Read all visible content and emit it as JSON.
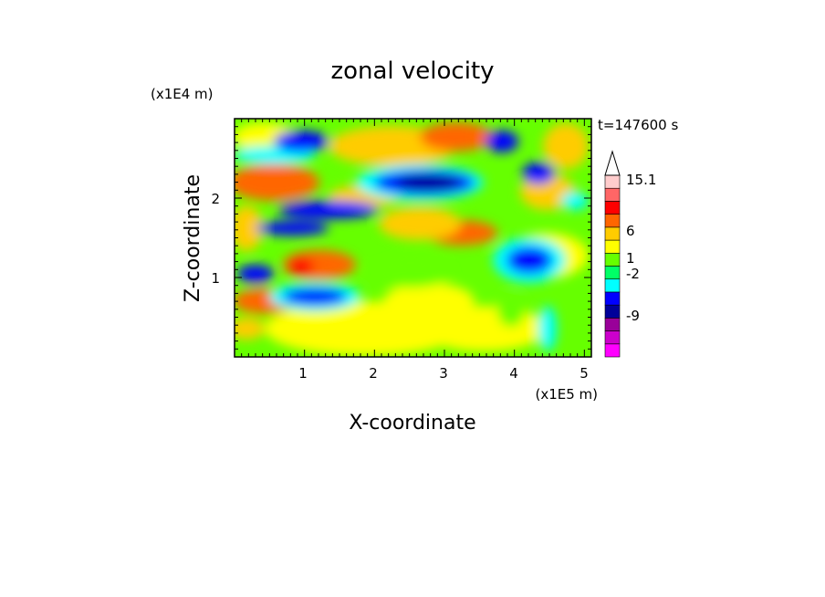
{
  "chart_data": {
    "type": "heatmap",
    "title": "zonal velocity",
    "xlabel": "X-coordinate",
    "ylabel": "Z-coordinate",
    "x_unit": "(x1E5 m)",
    "y_unit": "(x1E4 m)",
    "time_label": "t=147600 s",
    "xlim": [
      0.0,
      5.1
    ],
    "ylim": [
      0.0,
      3.0
    ],
    "x_ticks": [
      "1",
      "2",
      "3",
      "4",
      "5"
    ],
    "y_ticks": [
      "1",
      "2"
    ],
    "colorbar": {
      "tick_labels": [
        "15.1",
        "6",
        "1",
        "-2",
        "-9"
      ],
      "levels": [
        -15,
        -12,
        -9,
        -6,
        -3,
        -2,
        -1,
        0,
        1,
        2,
        3,
        6,
        9,
        12,
        15.1
      ],
      "colors": [
        "#ff00ff",
        "#cc00cc",
        "#990099",
        "#000099",
        "#0000ff",
        "#00ffff",
        "#00ff66",
        "#66ff00",
        "#ffff00",
        "#ffcc00",
        "#ff6600",
        "#ff0000",
        "#ff6666",
        "#ffcccc"
      ],
      "extend": "max"
    },
    "field_regions": [
      {
        "x": 0.15,
        "z": 2.75,
        "value": 4
      },
      {
        "x": 0.9,
        "z": 1.0,
        "value": 6
      },
      {
        "x": 1.0,
        "z": 0.75,
        "value": -8
      },
      {
        "x": 1.5,
        "z": 1.6,
        "value": -7
      },
      {
        "x": 2.2,
        "z": 1.0,
        "value": -2
      },
      {
        "x": 2.7,
        "z": 2.3,
        "value": -9
      },
      {
        "x": 3.2,
        "z": 1.6,
        "value": 6
      },
      {
        "x": 3.5,
        "z": 0.9,
        "value": 0.5
      },
      {
        "x": 4.2,
        "z": 1.2,
        "value": -9
      },
      {
        "x": 4.6,
        "z": 2.3,
        "value": 5
      }
    ]
  }
}
